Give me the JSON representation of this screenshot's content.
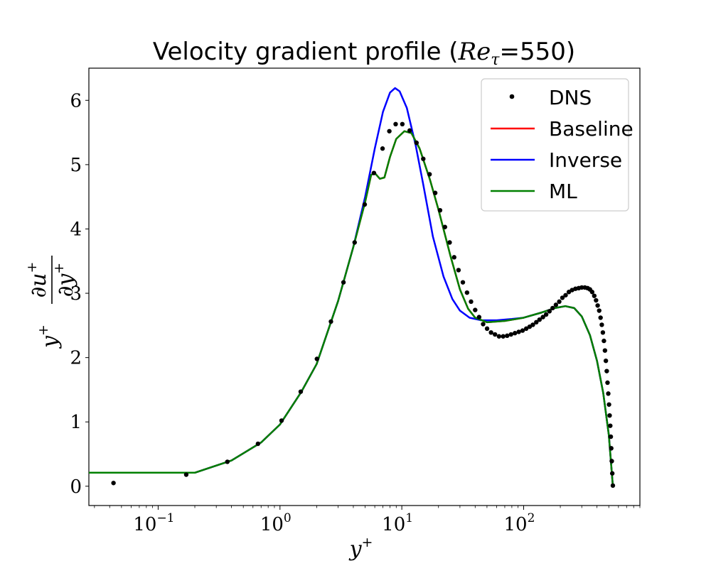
{
  "chart_data": {
    "type": "line",
    "title": {
      "prefix": "Velocity gradient profile (",
      "re_symbol": "Re",
      "re_subscript": "τ",
      "equals_value": "=550",
      "suffix": ")"
    },
    "xlabel": {
      "base": "y",
      "sup": "+"
    },
    "ylabel": {
      "prefix_base": "y",
      "prefix_sup": "+",
      "num_base": "∂u",
      "num_sup": "+",
      "den_base": "∂y",
      "den_sup": "+"
    },
    "xscale": "log",
    "xlim": [
      0.027,
      900
    ],
    "ylim": [
      -0.3,
      6.5
    ],
    "xticks": [
      {
        "value": 0.1,
        "base": "10",
        "exp": "−1"
      },
      {
        "value": 1,
        "base": "10",
        "exp": "0"
      },
      {
        "value": 10,
        "base": "10",
        "exp": "1"
      },
      {
        "value": 100,
        "base": "10",
        "exp": "2"
      }
    ],
    "yticks": [
      {
        "value": 0,
        "label": "0"
      },
      {
        "value": 1,
        "label": "1"
      },
      {
        "value": 2,
        "label": "2"
      },
      {
        "value": 3,
        "label": "3"
      },
      {
        "value": 4,
        "label": "4"
      },
      {
        "value": 5,
        "label": "5"
      },
      {
        "value": 6,
        "label": "6"
      }
    ],
    "legend": {
      "position": "top-right",
      "entries": [
        {
          "name": "DNS",
          "style": "marker",
          "color": "#000000"
        },
        {
          "name": "Baseline",
          "style": "line",
          "color": "#ff0000"
        },
        {
          "name": "Inverse",
          "style": "line",
          "color": "#0000ff"
        },
        {
          "name": "ML",
          "style": "line",
          "color": "#008000"
        }
      ]
    },
    "series": [
      {
        "name": "DNS",
        "type": "scatter",
        "color": "#000000",
        "points": [
          [
            0.043,
            0.05
          ],
          [
            0.17,
            0.18
          ],
          [
            0.37,
            0.38
          ],
          [
            0.66,
            0.66
          ],
          [
            1.03,
            1.02
          ],
          [
            1.48,
            1.47
          ],
          [
            2.01,
            1.98
          ],
          [
            2.62,
            2.56
          ],
          [
            3.32,
            3.17
          ],
          [
            4.1,
            3.79
          ],
          [
            4.96,
            4.38
          ],
          [
            5.9,
            4.87
          ],
          [
            6.95,
            5.25
          ],
          [
            7.9,
            5.52
          ],
          [
            8.9,
            5.63
          ],
          [
            10.1,
            5.63
          ],
          [
            11.6,
            5.53
          ],
          [
            13.2,
            5.34
          ],
          [
            15.0,
            5.09
          ],
          [
            16.9,
            4.85
          ],
          [
            18.8,
            4.56
          ],
          [
            20.6,
            4.29
          ],
          [
            22.6,
            4.03
          ],
          [
            24.7,
            3.79
          ],
          [
            26.9,
            3.56
          ],
          [
            29.2,
            3.36
          ],
          [
            31.7,
            3.17
          ],
          [
            34.3,
            3.01
          ],
          [
            37.0,
            2.87
          ],
          [
            40.0,
            2.74
          ],
          [
            43.1,
            2.63
          ],
          [
            46.5,
            2.52
          ],
          [
            50.1,
            2.45
          ],
          [
            54.0,
            2.39
          ],
          [
            58.2,
            2.36
          ],
          [
            62.8,
            2.33
          ],
          [
            67.9,
            2.33
          ],
          [
            73.2,
            2.34
          ],
          [
            78.8,
            2.36
          ],
          [
            84.8,
            2.38
          ],
          [
            91.2,
            2.4
          ],
          [
            98.0,
            2.42
          ],
          [
            105,
            2.45
          ],
          [
            112,
            2.48
          ],
          [
            119,
            2.51
          ],
          [
            127,
            2.55
          ],
          [
            135,
            2.59
          ],
          [
            144,
            2.63
          ],
          [
            153,
            2.67
          ],
          [
            163,
            2.72
          ],
          [
            173,
            2.77
          ],
          [
            184,
            2.82
          ],
          [
            196,
            2.87
          ],
          [
            208,
            2.93
          ],
          [
            221,
            2.97
          ],
          [
            235,
            3.02
          ],
          [
            250,
            3.05
          ],
          [
            266,
            3.07
          ],
          [
            283,
            3.08
          ],
          [
            300,
            3.09
          ],
          [
            318,
            3.09
          ],
          [
            335,
            3.08
          ],
          [
            350,
            3.06
          ],
          [
            365,
            3.02
          ],
          [
            380,
            2.96
          ],
          [
            393,
            2.89
          ],
          [
            405,
            2.81
          ],
          [
            417,
            2.73
          ],
          [
            428,
            2.62
          ],
          [
            438,
            2.51
          ],
          [
            447,
            2.39
          ],
          [
            456,
            2.26
          ],
          [
            465,
            2.11
          ],
          [
            473,
            1.95
          ],
          [
            481,
            1.79
          ],
          [
            488,
            1.61
          ],
          [
            495,
            1.44
          ],
          [
            502,
            1.27
          ],
          [
            508,
            1.1
          ],
          [
            514,
            0.94
          ],
          [
            519,
            0.77
          ],
          [
            524,
            0.59
          ],
          [
            529,
            0.39
          ],
          [
            534,
            0.2
          ],
          [
            540,
            0.01
          ]
        ]
      },
      {
        "name": "Baseline",
        "type": "line",
        "color": "#ff0000",
        "points": [
          [
            0.027,
            0.21
          ],
          [
            0.2,
            0.21
          ],
          [
            0.4,
            0.4
          ],
          [
            0.7,
            0.68
          ],
          [
            1.0,
            0.96
          ],
          [
            1.5,
            1.47
          ],
          [
            2.0,
            1.9
          ],
          [
            3.0,
            2.88
          ],
          [
            4.0,
            3.72
          ],
          [
            5.0,
            4.42
          ],
          [
            5.6,
            4.84
          ],
          [
            6.0,
            4.87
          ],
          [
            6.6,
            4.78
          ],
          [
            7.2,
            4.8
          ],
          [
            8.0,
            5.12
          ],
          [
            9.0,
            5.4
          ],
          [
            10.5,
            5.52
          ],
          [
            12.0,
            5.49
          ],
          [
            14.0,
            5.25
          ],
          [
            17.0,
            4.77
          ],
          [
            20.0,
            4.3
          ],
          [
            25.0,
            3.59
          ],
          [
            30.0,
            3.06
          ],
          [
            35.0,
            2.76
          ],
          [
            40.0,
            2.62
          ],
          [
            50.0,
            2.55
          ],
          [
            70.0,
            2.57
          ],
          [
            100.0,
            2.62
          ],
          [
            140.0,
            2.7
          ],
          [
            180.0,
            2.77
          ],
          [
            220.0,
            2.8
          ],
          [
            260.0,
            2.77
          ],
          [
            300.0,
            2.64
          ],
          [
            350.0,
            2.35
          ],
          [
            400.0,
            1.95
          ],
          [
            450.0,
            1.45
          ],
          [
            500.0,
            0.8
          ],
          [
            540.0,
            0.0
          ]
        ]
      },
      {
        "name": "Inverse",
        "type": "line",
        "color": "#0000ff",
        "points": [
          [
            0.027,
            0.21
          ],
          [
            0.2,
            0.21
          ],
          [
            0.4,
            0.4
          ],
          [
            0.7,
            0.68
          ],
          [
            1.0,
            0.96
          ],
          [
            1.5,
            1.47
          ],
          [
            2.0,
            1.9
          ],
          [
            3.0,
            2.88
          ],
          [
            4.0,
            3.72
          ],
          [
            5.0,
            4.5
          ],
          [
            6.0,
            5.25
          ],
          [
            7.0,
            5.82
          ],
          [
            8.0,
            6.12
          ],
          [
            8.8,
            6.19
          ],
          [
            9.6,
            6.14
          ],
          [
            11.0,
            5.88
          ],
          [
            13.0,
            5.3
          ],
          [
            15.0,
            4.69
          ],
          [
            18.0,
            3.88
          ],
          [
            22.0,
            3.26
          ],
          [
            26.0,
            2.91
          ],
          [
            30.0,
            2.73
          ],
          [
            36.0,
            2.62
          ],
          [
            45.0,
            2.58
          ],
          [
            60.0,
            2.58
          ],
          [
            80.0,
            2.6
          ],
          [
            100.0,
            2.62
          ],
          [
            140.0,
            2.7
          ],
          [
            180.0,
            2.77
          ],
          [
            220.0,
            2.8
          ],
          [
            260.0,
            2.77
          ],
          [
            300.0,
            2.64
          ],
          [
            350.0,
            2.35
          ],
          [
            400.0,
            1.95
          ],
          [
            450.0,
            1.45
          ],
          [
            500.0,
            0.8
          ],
          [
            540.0,
            0.0
          ]
        ]
      },
      {
        "name": "ML",
        "type": "line",
        "color": "#008000",
        "points": [
          [
            0.027,
            0.21
          ],
          [
            0.2,
            0.21
          ],
          [
            0.4,
            0.4
          ],
          [
            0.7,
            0.68
          ],
          [
            1.0,
            0.96
          ],
          [
            1.5,
            1.47
          ],
          [
            2.0,
            1.9
          ],
          [
            3.0,
            2.88
          ],
          [
            4.0,
            3.72
          ],
          [
            5.0,
            4.42
          ],
          [
            5.6,
            4.84
          ],
          [
            6.0,
            4.87
          ],
          [
            6.6,
            4.78
          ],
          [
            7.2,
            4.8
          ],
          [
            8.0,
            5.12
          ],
          [
            9.0,
            5.4
          ],
          [
            10.5,
            5.52
          ],
          [
            12.0,
            5.49
          ],
          [
            14.0,
            5.25
          ],
          [
            17.0,
            4.77
          ],
          [
            20.0,
            4.3
          ],
          [
            25.0,
            3.59
          ],
          [
            30.0,
            3.06
          ],
          [
            35.0,
            2.76
          ],
          [
            40.0,
            2.62
          ],
          [
            50.0,
            2.55
          ],
          [
            70.0,
            2.57
          ],
          [
            100.0,
            2.62
          ],
          [
            140.0,
            2.7
          ],
          [
            180.0,
            2.77
          ],
          [
            220.0,
            2.8
          ],
          [
            260.0,
            2.77
          ],
          [
            300.0,
            2.64
          ],
          [
            350.0,
            2.35
          ],
          [
            400.0,
            1.95
          ],
          [
            450.0,
            1.45
          ],
          [
            500.0,
            0.8
          ],
          [
            540.0,
            0.0
          ]
        ]
      }
    ]
  }
}
